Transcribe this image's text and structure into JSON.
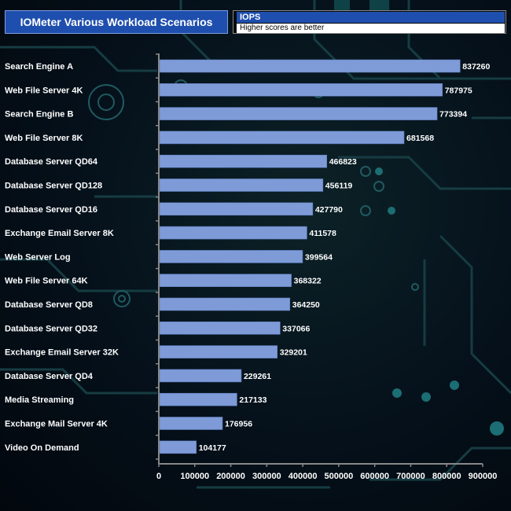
{
  "chart_title": "IOMeter Various Workload Scenarios",
  "legend": {
    "series_label": "IOPS",
    "note": "Higher scores are better"
  },
  "colors": {
    "bar": "#7e9bd8",
    "axis": "#888888",
    "title_bg": "#1f4fae",
    "text": "#ffffff"
  },
  "chart_data": {
    "type": "bar",
    "orientation": "horizontal",
    "title": "IOMeter Various Workload Scenarios",
    "categories": [
      "Search Engine A",
      "Web File Server 4K",
      "Search Engine B",
      "Web File Server 8K",
      "Database Server QD64",
      "Database Server QD128",
      "Database Server QD16",
      "Exchange Email Server 8K",
      "Web Server Log",
      "Web File Server 64K",
      "Database Server QD8",
      "Database Server QD32",
      "Exchange Email Server 32K",
      "Database Server QD4",
      "Media Streaming",
      "Exchange Mail Server 4K",
      "Video On Demand"
    ],
    "series": [
      {
        "name": "IOPS",
        "values": [
          837260,
          787975,
          773394,
          681568,
          466823,
          456119,
          427790,
          411578,
          399564,
          368322,
          364250,
          337066,
          329201,
          229261,
          217133,
          176956,
          104177
        ]
      }
    ],
    "xlim": [
      0,
      900000
    ],
    "xticks": [
      "0",
      "100000",
      "200000",
      "300000",
      "400000",
      "500000",
      "600000",
      "700000",
      "800000",
      "900000"
    ],
    "legend_note": "Higher scores are better",
    "legend_position": "top-right",
    "grid": false
  }
}
